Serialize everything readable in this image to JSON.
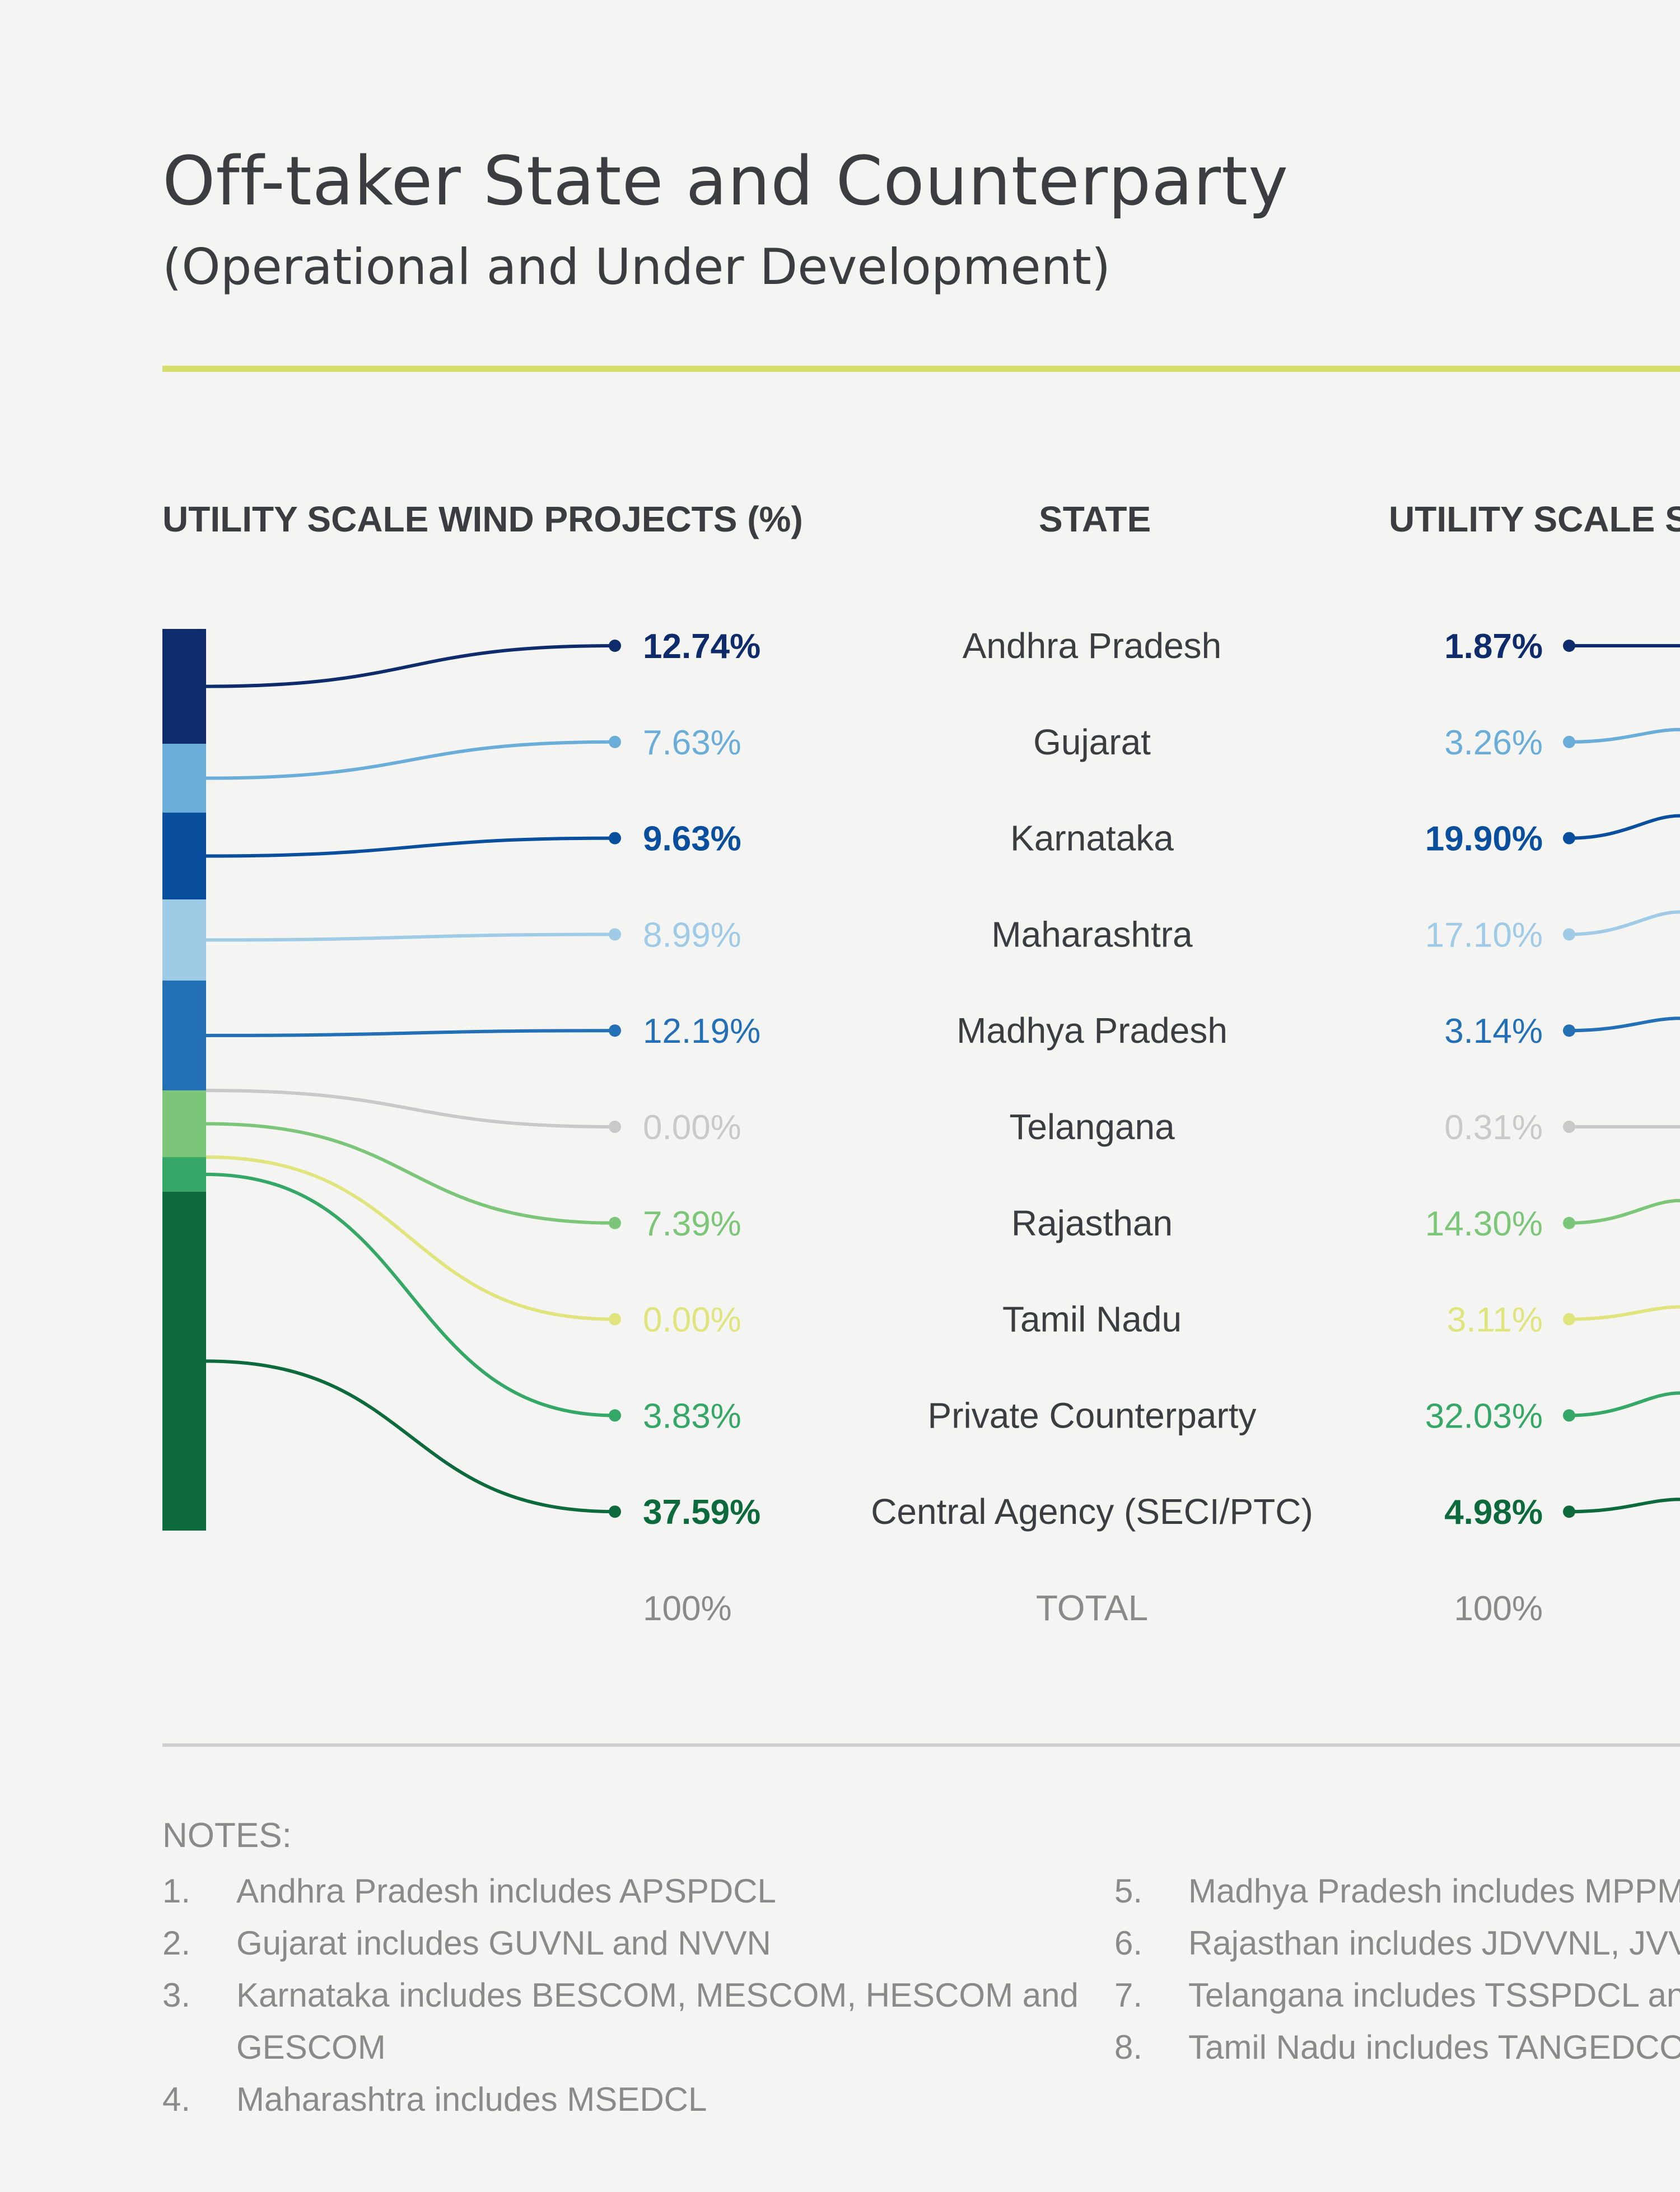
{
  "title": "Off-taker State and Counterparty",
  "subtitle": "(Operational and Under Development)",
  "headers": {
    "left": "UTILITY SCALE WIND PROJECTS (%)",
    "middle": "STATE",
    "right": "UTILITY SCALE SC"
  },
  "colors": {
    "accent_rule": "#d6df6b",
    "andhra_pradesh": "#0e2c6b",
    "gujarat": "#6aadd9",
    "karnataka": "#0a4f9e",
    "maharashtra": "#9fcbe6",
    "madhya_pradesh": "#2470b6",
    "telangana": "#c9c9c9",
    "rajasthan": "#7cc67a",
    "tamil_nadu": "#dfe57c",
    "private_counterparty": "#35a766",
    "central_agency": "#0d6a3d"
  },
  "chart_data": {
    "type": "table",
    "categories": [
      "Andhra Pradesh",
      "Gujarat",
      "Karnataka",
      "Maharashtra",
      "Madhya Pradesh",
      "Telangana",
      "Rajasthan",
      "Tamil Nadu",
      "Private Counterparty",
      "Central Agency (SECI/PTC)"
    ],
    "series": [
      {
        "name": "UTILITY SCALE WIND PROJECTS (%)",
        "labels": [
          "12.74%",
          "7.63%",
          "9.63%",
          "8.99%",
          "12.19%",
          "0.00%",
          "7.39%",
          "0.00%",
          "3.83%",
          "37.59%"
        ],
        "values": [
          12.74,
          7.63,
          9.63,
          8.99,
          12.19,
          0.0,
          7.39,
          0.0,
          3.83,
          37.59
        ]
      },
      {
        "name": "UTILITY SCALE SC",
        "labels": [
          "1.87%",
          "3.26%",
          "19.90%",
          "17.10%",
          "3.14%",
          "0.31%",
          "14.30%",
          "3.11%",
          "32.03%",
          "4.98%"
        ],
        "values": [
          1.87,
          3.26,
          19.9,
          17.1,
          3.14,
          0.31,
          14.3,
          3.11,
          32.03,
          4.98
        ]
      }
    ],
    "colors": [
      "#0e2c6b",
      "#6aadd9",
      "#0a4f9e",
      "#9fcbe6",
      "#2470b6",
      "#c9c9c9",
      "#7cc67a",
      "#dfe57c",
      "#35a766",
      "#0d6a3d"
    ],
    "bold": [
      true,
      false,
      true,
      false,
      false,
      false,
      false,
      false,
      false,
      true
    ],
    "total": {
      "left": "100%",
      "label": "TOTAL",
      "right": "100%"
    }
  },
  "notes": {
    "heading": "NOTES:",
    "items": [
      {
        "num": "1.",
        "text": "Andhra Pradesh includes APSPDCL"
      },
      {
        "num": "2.",
        "text": "Gujarat includes GUVNL and NVVN"
      },
      {
        "num": "3.",
        "text": "Karnataka  includes  BESCOM,  MESCOM,  HESCOM  and"
      },
      {
        "num": "",
        "text": "GESCOM"
      },
      {
        "num": "4.",
        "text": "Maharashtra includes MSEDCL"
      },
      {
        "num": "5.",
        "text": "Madhya Pradesh includes MPPMC"
      },
      {
        "num": "6.",
        "text": "Rajasthan includes JDVVNL, JVVN"
      },
      {
        "num": "7.",
        "text": "Telangana includes TSSPDCL and"
      },
      {
        "num": "8.",
        "text": "Tamil Nadu includes TANGEDCO"
      }
    ]
  }
}
